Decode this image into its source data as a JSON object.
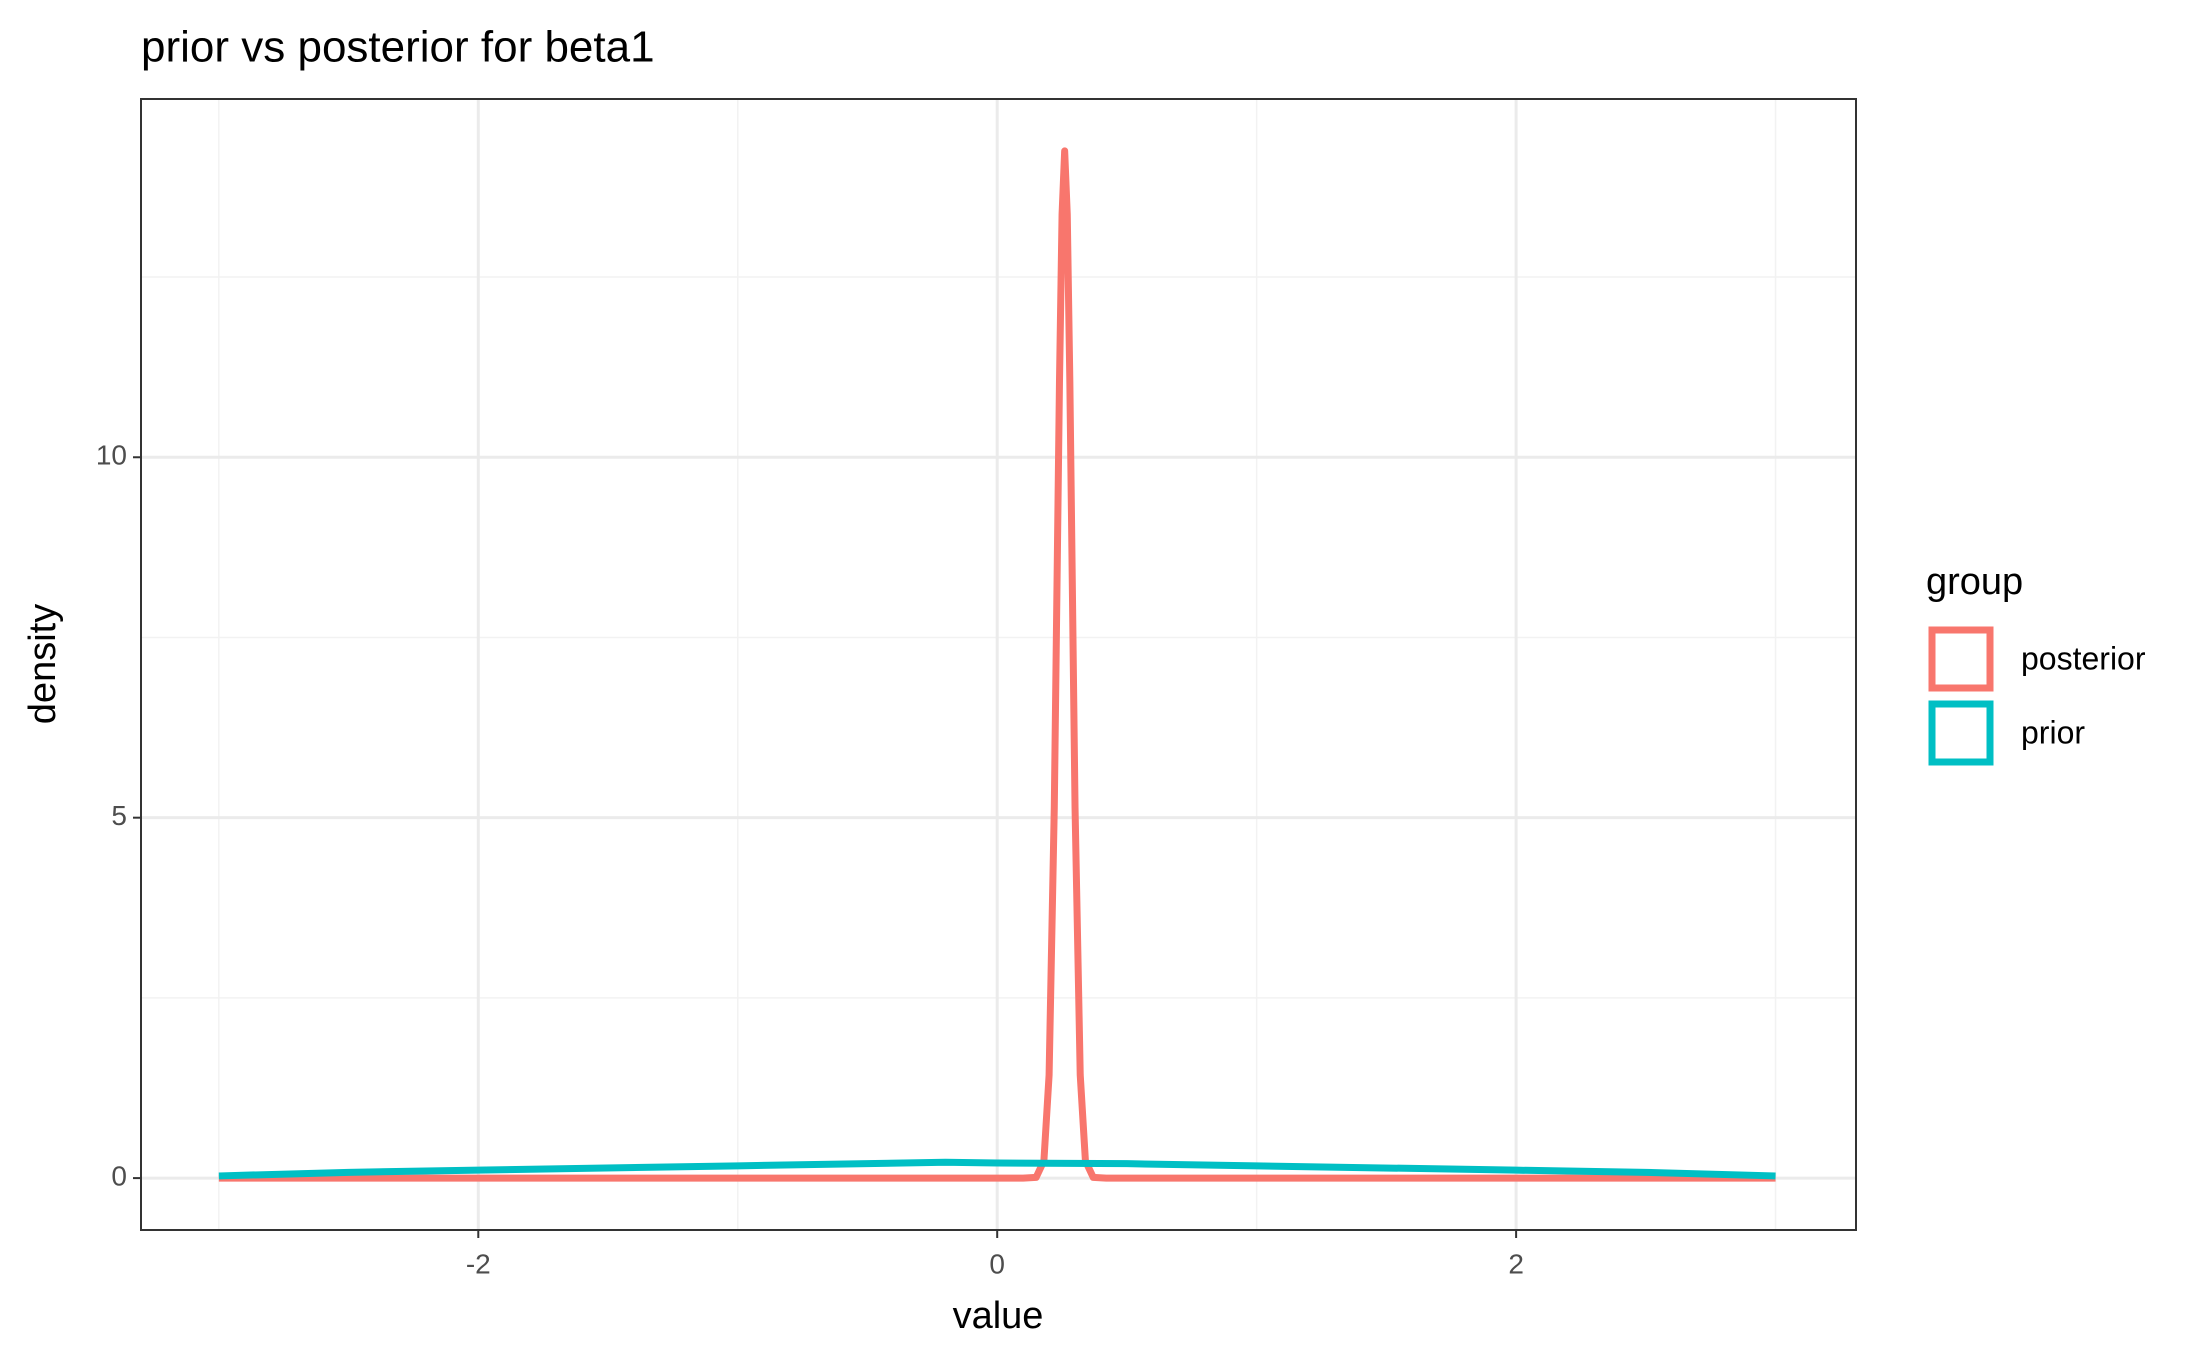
{
  "chart_data": {
    "type": "line",
    "title": "prior vs posterior for beta1",
    "x_label": "value",
    "y_label": "density",
    "legend_title": "group",
    "legend_position": "right",
    "xlim": [
      -3.3,
      3.31
    ],
    "ylim": [
      -0.72,
      14.97
    ],
    "xticks": [
      -2,
      0,
      2
    ],
    "yticks": [
      0,
      5,
      10
    ],
    "grid": true,
    "series": [
      {
        "name": "posterior",
        "color": "#f8766d",
        "x": [
          -3,
          0.1,
          0.15,
          0.18,
          0.2,
          0.22,
          0.24,
          0.25,
          0.26,
          0.27,
          0.28,
          0.3,
          0.32,
          0.34,
          0.37,
          0.42,
          3
        ],
        "values": [
          0,
          0,
          0.01,
          0.24,
          1.43,
          5.14,
          11.04,
          13.37,
          14.25,
          13.37,
          11.04,
          5.14,
          1.43,
          0.24,
          0.01,
          0,
          0
        ]
      },
      {
        "name": "prior",
        "color": "#00bfc4",
        "x": [
          -3,
          -2.5,
          -2,
          -1,
          -0.2,
          0,
          0.5,
          1,
          2,
          2.5,
          3
        ],
        "values": [
          0.03,
          0.08,
          0.11,
          0.17,
          0.22,
          0.21,
          0.2,
          0.17,
          0.11,
          0.08,
          0.03
        ]
      }
    ]
  }
}
